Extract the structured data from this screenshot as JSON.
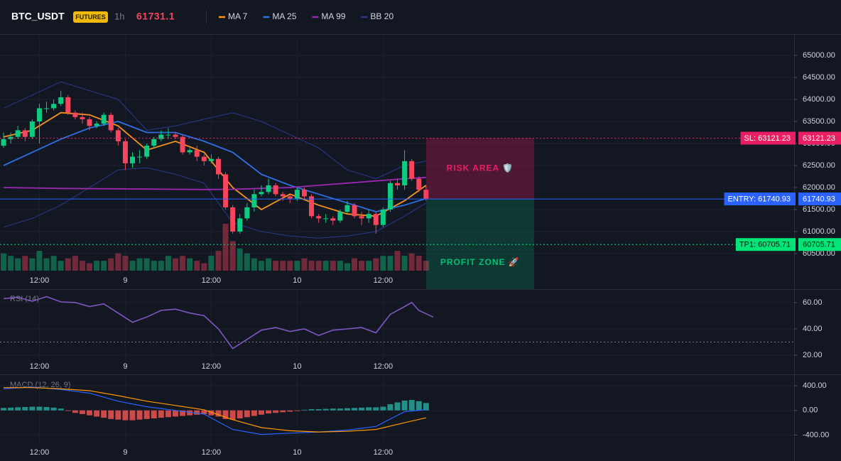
{
  "chart_data": [
    {
      "type": "candlestick",
      "title": "BTC_USDT",
      "badge": "FUTURES",
      "interval": "1h",
      "last_price": 61731.1,
      "xlim": [
        -0.5,
        110.4
      ],
      "xticks": [
        {
          "value": 5,
          "label": "12:00"
        },
        {
          "value": 17,
          "label": "9"
        },
        {
          "value": 29,
          "label": "12:00"
        },
        {
          "value": 41,
          "label": "10"
        },
        {
          "value": 53,
          "label": "12:00"
        }
      ],
      "ylim": [
        60113,
        65452
      ],
      "yticks": [
        {
          "value": 65000,
          "label": "65000.00"
        },
        {
          "value": 64500,
          "label": "64500.00"
        },
        {
          "value": 64000,
          "label": "64000.00"
        },
        {
          "value": 63500,
          "label": "63500.00"
        },
        {
          "value": 63000,
          "label": "63000.00"
        },
        {
          "value": 62500,
          "label": "62500.00"
        },
        {
          "value": 62000,
          "label": "62000.00"
        },
        {
          "value": 61500,
          "label": "61500.00"
        },
        {
          "value": 61000,
          "label": "61000.00"
        },
        {
          "value": 60500,
          "label": "60500.00"
        }
      ],
      "up_color": "#0ecb81",
      "down_color": "#f6465d",
      "open": [
        62950,
        63100,
        63150,
        63300,
        63150,
        63500,
        63800,
        63800,
        63900,
        64050,
        63700,
        63600,
        63550,
        63400,
        63450,
        63650,
        63300,
        63050,
        62550,
        62700,
        62700,
        62950,
        63100,
        63200,
        63200,
        63150,
        62800,
        62850,
        62700,
        62600,
        62650,
        62300,
        61550,
        61000,
        61300,
        61550,
        61850,
        61900,
        62050,
        61850,
        61800,
        61750,
        61950,
        61800,
        61350,
        61300,
        61300,
        61250,
        61450,
        61600,
        61350,
        61300,
        61400,
        61150,
        61500,
        62100,
        62050,
        62600,
        62200,
        61950
      ],
      "high": [
        63250,
        63250,
        63400,
        63350,
        63550,
        63900,
        63950,
        64000,
        64200,
        64100,
        63750,
        63700,
        63600,
        63500,
        63700,
        63700,
        63350,
        63100,
        62800,
        62850,
        63000,
        63150,
        63300,
        63350,
        63250,
        63200,
        62900,
        62950,
        62750,
        62750,
        62700,
        62350,
        61600,
        61400,
        61650,
        61950,
        62050,
        62200,
        62100,
        61900,
        61850,
        62000,
        62000,
        61850,
        61400,
        61400,
        61350,
        61500,
        61700,
        61650,
        61450,
        61500,
        61450,
        61550,
        62150,
        62200,
        62850,
        62650,
        62250,
        62050
      ],
      "low": [
        62900,
        63000,
        63100,
        63050,
        63100,
        63000,
        63700,
        63750,
        63850,
        63650,
        63550,
        63450,
        63300,
        63350,
        63400,
        63250,
        62950,
        62400,
        62450,
        62550,
        62650,
        62900,
        63050,
        63100,
        63100,
        62750,
        62750,
        62600,
        62500,
        62550,
        62200,
        61500,
        60950,
        60950,
        61250,
        61450,
        61800,
        61850,
        61800,
        61700,
        61650,
        61700,
        61750,
        61300,
        61200,
        61200,
        61150,
        61200,
        61400,
        61300,
        61150,
        61200,
        60950,
        61100,
        61450,
        61950,
        61950,
        62150,
        61900,
        61700
      ],
      "close": [
        63100,
        63150,
        63300,
        63150,
        63500,
        63800,
        63800,
        63900,
        64050,
        63700,
        63600,
        63550,
        63400,
        63450,
        63650,
        63300,
        63050,
        62550,
        62700,
        62700,
        62950,
        63100,
        63200,
        63200,
        63150,
        62800,
        62850,
        62700,
        62600,
        62650,
        62300,
        61550,
        61000,
        61300,
        61550,
        61850,
        61900,
        62050,
        61850,
        61800,
        61750,
        61950,
        61800,
        61350,
        61300,
        61300,
        61250,
        61450,
        61600,
        61350,
        61300,
        61400,
        61150,
        61500,
        62100,
        62050,
        62600,
        62200,
        61950,
        61750
      ],
      "volume": [
        35,
        30,
        25,
        30,
        25,
        40,
        25,
        30,
        20,
        25,
        30,
        20,
        15,
        20,
        20,
        25,
        35,
        30,
        20,
        25,
        25,
        20,
        20,
        30,
        25,
        30,
        25,
        20,
        15,
        30,
        40,
        95,
        60,
        45,
        35,
        25,
        20,
        25,
        20,
        20,
        20,
        20,
        25,
        20,
        20,
        20,
        20,
        20,
        15,
        25,
        20,
        20,
        25,
        30,
        30,
        40,
        30,
        35,
        30,
        20
      ],
      "overlay_x": [
        0,
        4,
        8,
        12,
        16,
        20,
        24,
        28,
        32,
        36,
        40,
        44,
        48,
        52,
        56,
        59
      ],
      "series": [
        {
          "name": "MA 7",
          "color": "#f7931a",
          "values": [
            63150,
            63300,
            63700,
            63650,
            63400,
            62850,
            63050,
            62800,
            62000,
            61500,
            61850,
            61600,
            61400,
            61350,
            61700,
            62050
          ]
        },
        {
          "name": "MA 25",
          "color": "#2f6fe4",
          "values": [
            62500,
            62800,
            63100,
            63350,
            63500,
            63250,
            63250,
            63050,
            62800,
            62300,
            62050,
            61850,
            61650,
            61450,
            61600,
            61750
          ]
        },
        {
          "name": "MA 99",
          "color": "#9c27b0",
          "values": [
            62000,
            61990,
            61980,
            61975,
            61970,
            61965,
            61960,
            61955,
            61960,
            61980,
            62000,
            62050,
            62100,
            62150,
            62200,
            62230
          ]
        }
      ],
      "bands": {
        "name": "BB 20",
        "color": "#283a8a",
        "upper": [
          63800,
          64100,
          64400,
          64200,
          64000,
          63300,
          63400,
          63550,
          63700,
          63500,
          63200,
          62900,
          62400,
          62200,
          62500,
          62600
        ],
        "lower": [
          61100,
          61300,
          61600,
          62000,
          62400,
          62450,
          62300,
          62100,
          61200,
          61000,
          60900,
          60850,
          60900,
          61000,
          61350,
          61650
        ]
      },
      "levels": [
        {
          "label": "SL: 63121.23",
          "value": 63121.23,
          "color": "#e91e63",
          "style": "dotted"
        },
        {
          "label": "ENTRY: 61740.93",
          "value": 61740.93,
          "color": "#2962ff",
          "style": "solid"
        },
        {
          "label": "TP1: 60705.71",
          "value": 60705.71,
          "color": "#00e676",
          "style": "dotted"
        }
      ],
      "zones": [
        {
          "label": "RISK AREA 🛡️",
          "color": "#e91e63"
        },
        {
          "label": "PROFIT ZONE 🚀",
          "color": "#00c076"
        }
      ]
    },
    {
      "type": "line",
      "label": "RSI (14)",
      "color": "#7e57c2",
      "x": [
        0,
        2,
        4,
        6,
        8,
        10,
        12,
        14,
        16,
        18,
        20,
        22,
        24,
        26,
        28,
        30,
        32,
        34,
        36,
        38,
        40,
        42,
        44,
        46,
        48,
        50,
        52,
        54,
        56,
        57,
        58,
        60
      ],
      "values": [
        63,
        64,
        61,
        64.5,
        60.5,
        60,
        57,
        59,
        52,
        45,
        49,
        54,
        55,
        52,
        50,
        40,
        25,
        32,
        39,
        41,
        38,
        40,
        35,
        39,
        40,
        41,
        37,
        51,
        57,
        60,
        54,
        49
      ],
      "ylim": [
        17.3,
        68.6
      ],
      "yticks": [
        {
          "value": 60,
          "label": "60.00"
        },
        {
          "value": 40,
          "label": "40.00"
        },
        {
          "value": 20,
          "label": "20.00"
        }
      ],
      "level": 30
    },
    {
      "type": "bar",
      "label": "MACD (12, 26, 9)",
      "up_color": "#26a69a",
      "down_color": "#ef5350",
      "values": [
        40,
        45,
        50,
        55,
        60,
        60,
        55,
        45,
        30,
        -10,
        -40,
        -60,
        -80,
        -100,
        -120,
        -140,
        -150,
        -160,
        -160,
        -150,
        -140,
        -130,
        -120,
        -110,
        -100,
        -90,
        -80,
        -70,
        -60,
        -80,
        -100,
        -140,
        -150,
        -130,
        -110,
        -90,
        -70,
        -50,
        -40,
        -30,
        -20,
        -10,
        10,
        20,
        20,
        25,
        30,
        30,
        35,
        40,
        45,
        50,
        50,
        60,
        100,
        130,
        160,
        170,
        150,
        120
      ],
      "ylim": [
        -545,
        551
      ],
      "yticks": [
        {
          "value": 400,
          "label": "400.00"
        },
        {
          "value": 0,
          "label": "0.00"
        },
        {
          "value": -400,
          "label": "-400.00"
        }
      ],
      "line_x": [
        0,
        4,
        8,
        12,
        16,
        20,
        24,
        28,
        32,
        36,
        40,
        44,
        48,
        52,
        56,
        59
      ],
      "series": [
        {
          "color": "#2962ff",
          "values": [
            350,
            380,
            340,
            280,
            150,
            60,
            0,
            -60,
            -310,
            -390,
            -370,
            -350,
            -320,
            -260,
            -20,
            10
          ]
        },
        {
          "color": "#ff9800",
          "values": [
            370,
            370,
            350,
            320,
            240,
            150,
            80,
            10,
            -150,
            -280,
            -330,
            -350,
            -340,
            -310,
            -200,
            -120
          ]
        }
      ]
    }
  ]
}
